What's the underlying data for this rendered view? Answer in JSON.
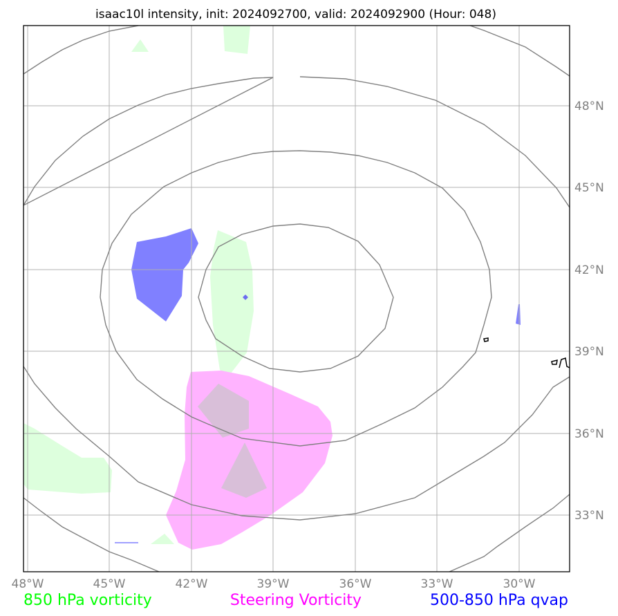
{
  "title": "isaac10l intensity, init: 2024092700, valid: 2024092900 (Hour: 048)",
  "lon_ticks": [
    "48°W",
    "45°W",
    "42°W",
    "39°W",
    "36°W",
    "33°W",
    "30°W"
  ],
  "lat_ticks": [
    "48°N",
    "45°N",
    "42°N",
    "39°N",
    "36°N",
    "33°N"
  ],
  "legend": [
    {
      "label": "850 hPa vorticity",
      "color": "#00ff00"
    },
    {
      "label": "Steering Vorticity",
      "color": "#ff00ff"
    },
    {
      "label": "500-850 hPa qvap",
      "color": "#0000ff"
    }
  ],
  "colors": {
    "grid": "#b0b0b0",
    "contour": "#808080",
    "vorticity_850_fill": "#ddffdd",
    "steering_fill": "#ffb3ff",
    "qvap_fill": "#8080ff",
    "overlap_fill": "#d9bfd9",
    "coastline": "#000000"
  }
}
